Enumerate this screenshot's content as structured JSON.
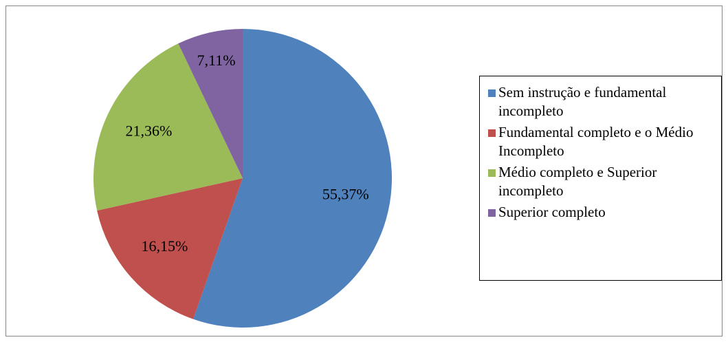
{
  "chart_data": {
    "type": "pie",
    "categories": [
      "Sem instrução e fundamental incompleto",
      "Fundamental completo e o Médio Incompleto",
      "Médio completo e Superior incompleto",
      "Superior completo"
    ],
    "values": [
      55.37,
      16.15,
      21.36,
      7.11
    ],
    "value_labels": [
      "55,37%",
      "16,15%",
      "21,36%",
      "7,11%"
    ],
    "colors": [
      "#4f81bd",
      "#c0504d",
      "#9bbb59",
      "#8064a2"
    ],
    "legend": "right"
  }
}
